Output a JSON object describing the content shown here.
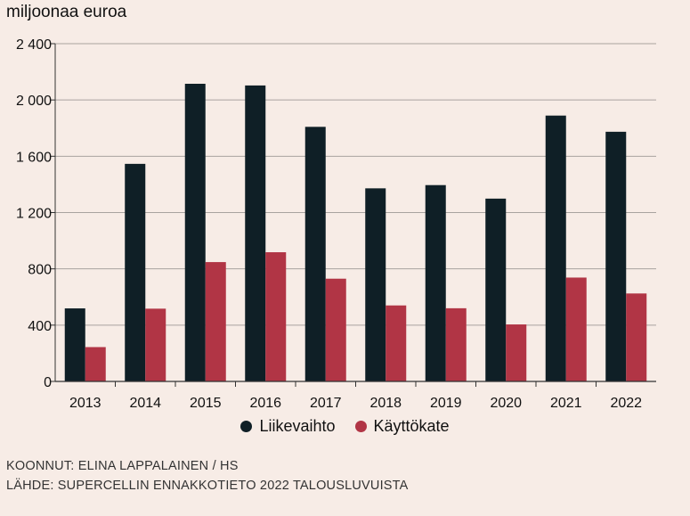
{
  "chart_data": {
    "type": "bar",
    "unit_label": "miljoonaa euroa",
    "categories": [
      "2013",
      "2014",
      "2015",
      "2016",
      "2017",
      "2018",
      "2019",
      "2020",
      "2021",
      "2022"
    ],
    "series": [
      {
        "name": "Liikevaihto",
        "color": "#0f1f26",
        "values": [
          519,
          1546,
          2115,
          2103,
          1809,
          1372,
          1395,
          1299,
          1889,
          1774
        ]
      },
      {
        "name": "Käyttökate",
        "color": "#b13545",
        "values": [
          244,
          517,
          848,
          918,
          730,
          540,
          520,
          405,
          738,
          625
        ]
      }
    ],
    "ylim": [
      0,
      2400
    ],
    "yticks": [
      0,
      400,
      800,
      1200,
      1600,
      2000,
      2400
    ],
    "ytick_labels": [
      "0",
      "400",
      "800",
      "1 200",
      "1 600",
      "2 000",
      "2 400"
    ],
    "grid": true,
    "legend_position": "bottom"
  },
  "footer": {
    "credit": "KOONNUT: ELINA LAPPALAINEN / HS",
    "source": "LÄHDE: SUPERCELLIN ENNAKKOTIETO 2022 TALOUSLUVUISTA"
  }
}
